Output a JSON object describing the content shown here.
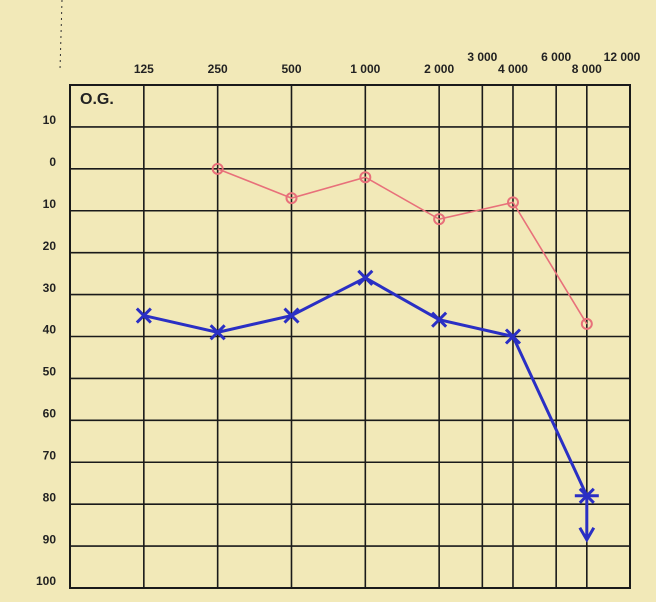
{
  "chart_data": {
    "type": "line",
    "label": "O.G.",
    "xscale": "log",
    "xlim": [
      62.5,
      12000
    ],
    "xticks": [
      125,
      250,
      500,
      {
        "value": 1000,
        "label": "1 000"
      },
      {
        "value": 2000,
        "label": "2 000"
      },
      {
        "value": 3000,
        "label": "3 000"
      },
      {
        "value": 4000,
        "label": "4 000"
      },
      {
        "value": 6000,
        "label": "6 000"
      },
      {
        "value": 8000,
        "label": "8 000"
      },
      {
        "value": 12000,
        "label": "12 000"
      }
    ],
    "ylim": [
      -20,
      100
    ],
    "yticks": [
      {
        "value": -10,
        "label": "10"
      },
      0,
      10,
      20,
      30,
      40,
      50,
      60,
      70,
      80,
      90,
      100
    ],
    "grid": true,
    "y_inverted": true,
    "series": [
      {
        "color": "#e8707a",
        "marker": "circle",
        "x": [
          250,
          500,
          1000,
          2000,
          4000,
          8000
        ],
        "values": [
          0,
          7,
          2,
          12,
          8,
          37
        ]
      },
      {
        "color": "#2a2fc4",
        "marker": "cross",
        "x": [
          125,
          250,
          500,
          1000,
          2000,
          4000,
          8000
        ],
        "values": [
          35,
          39,
          35,
          26,
          36,
          40,
          78
        ]
      }
    ]
  }
}
